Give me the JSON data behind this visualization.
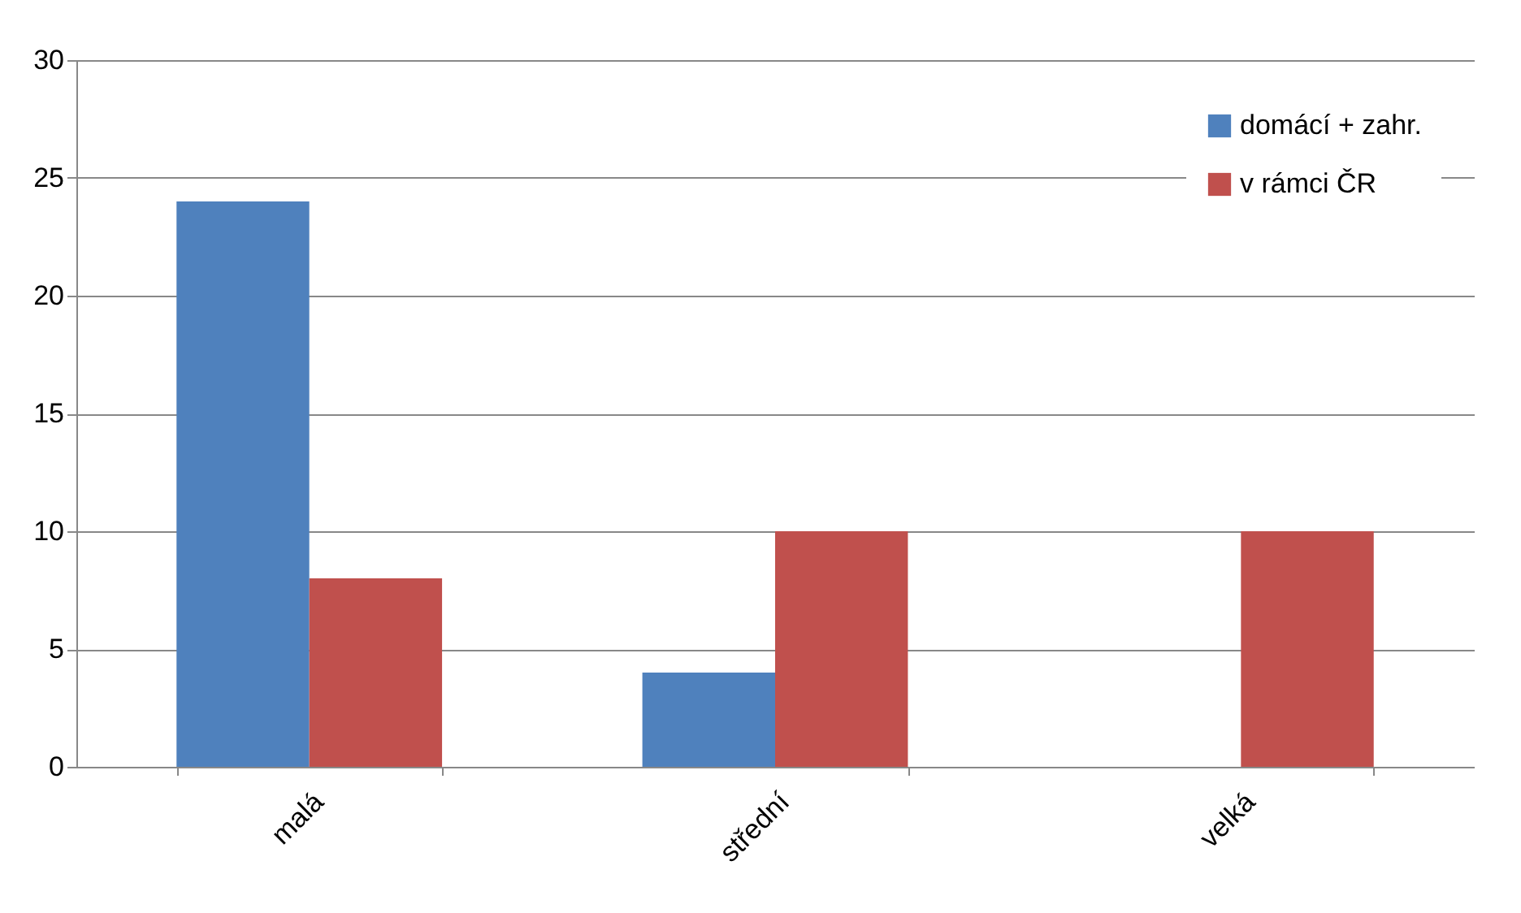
{
  "chart_data": {
    "type": "bar",
    "categories": [
      "malá",
      "střední",
      "velká"
    ],
    "series": [
      {
        "name": "domácí + zahr.",
        "color": "#4f81bd",
        "values": [
          24,
          4,
          0
        ]
      },
      {
        "name": "v rámci ČR",
        "color": "#c0504d",
        "values": [
          8,
          10,
          10
        ]
      }
    ],
    "ylim": [
      0,
      30
    ],
    "yticks": [
      0,
      5,
      10,
      15,
      20,
      25,
      30
    ],
    "grid": "y",
    "legend": "top right"
  }
}
